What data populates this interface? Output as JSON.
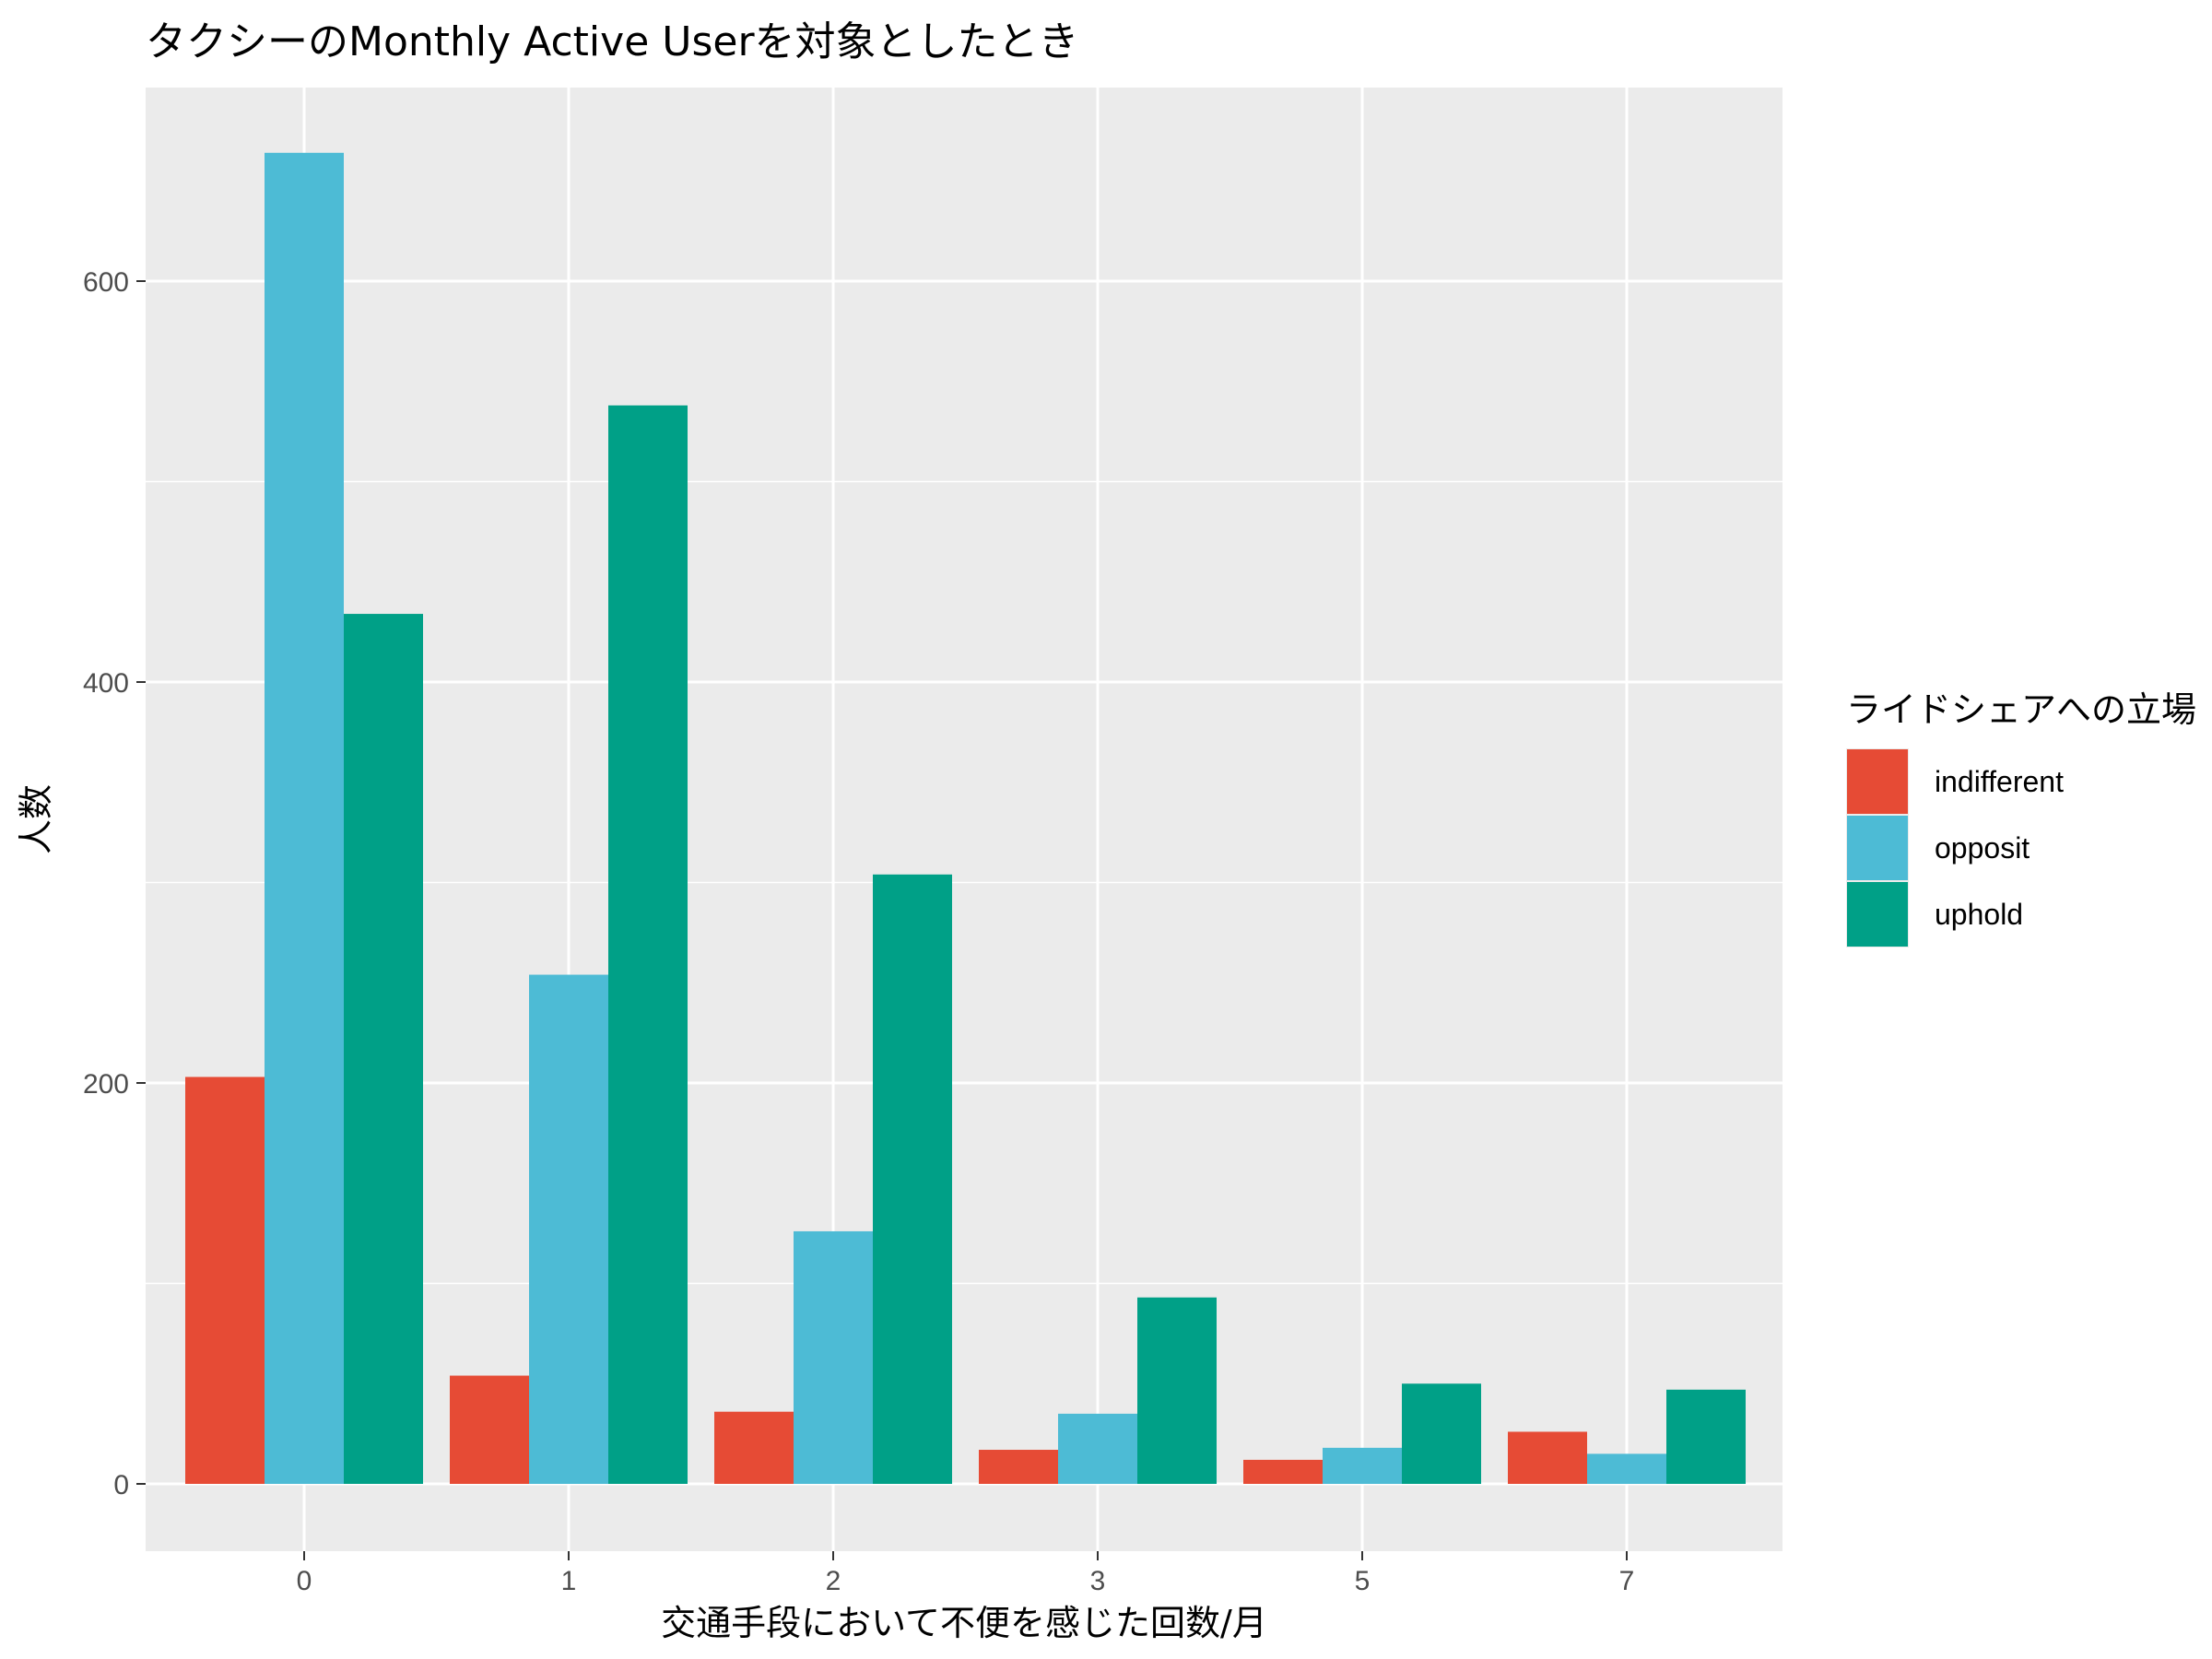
{
  "chart_data": {
    "type": "bar",
    "title": "タクシーのMonthly Active Userを対象としたとき",
    "xlabel": "交通手段において不便を感じた回数/月",
    "ylabel": "人数",
    "categories": [
      "0",
      "1",
      "2",
      "3",
      "5",
      "7"
    ],
    "series": [
      {
        "name": "indifferent",
        "color": "#E64B35",
        "values": [
          203,
          54,
          36,
          17,
          12,
          26
        ]
      },
      {
        "name": "opposit",
        "color": "#4DBBD5",
        "values": [
          664,
          254,
          126,
          35,
          18,
          15
        ]
      },
      {
        "name": "uphold",
        "color": "#00A087",
        "values": [
          434,
          538,
          304,
          93,
          50,
          47
        ]
      }
    ],
    "ylim": [
      0,
      700
    ],
    "yticks": [
      "0",
      "200",
      "400",
      "600"
    ],
    "grid": true,
    "legend": {
      "title": "ライドシェアへの立場",
      "position": "right"
    }
  }
}
